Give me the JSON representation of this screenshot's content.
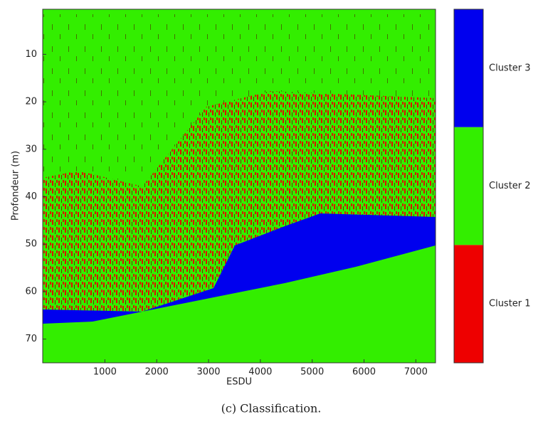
{
  "chart_data": {
    "type": "heatmap",
    "xlabel": "ESDU",
    "ylabel": "Profondeur (m)",
    "xlim": [
      -200,
      7380
    ],
    "xticks": [
      1000,
      2000,
      3000,
      4000,
      5000,
      6000,
      7000
    ],
    "ylim": [
      0.5,
      75
    ],
    "invert_y": true,
    "yticks": [
      10,
      20,
      30,
      40,
      50,
      60,
      70
    ],
    "background_color": "#33ee00",
    "colorbar": {
      "categories": [
        "Cluster 1",
        "Cluster 2",
        "Cluster 3"
      ],
      "colors": [
        "#ee0000",
        "#33ee00",
        "#0000ee"
      ]
    },
    "caption": "(c) Classification."
  }
}
